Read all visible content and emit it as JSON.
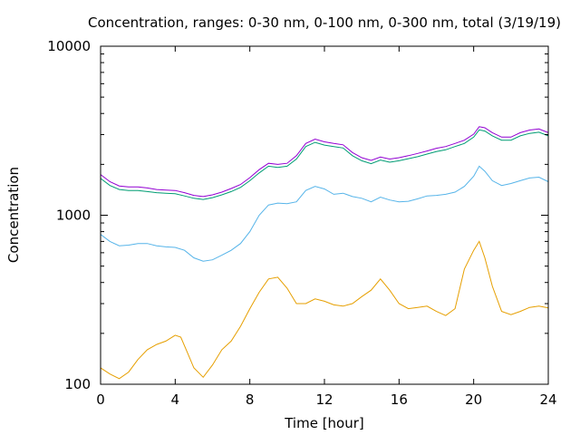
{
  "chart_data": {
    "type": "line",
    "title": "Concentration, ranges: 0-30 nm, 0-100 nm, 0-300 nm, total (3/19/19)",
    "xlabel": "Time [hour]",
    "ylabel": "Concentration",
    "xlim": [
      0,
      24
    ],
    "ylim": [
      100,
      10000
    ],
    "yscale": "log",
    "x_ticks": [
      "0",
      "4",
      "8",
      "12",
      "16",
      "20",
      "24"
    ],
    "y_ticks": [
      "100",
      "1000",
      "10000"
    ],
    "grid": false,
    "legend": "none",
    "series": [
      {
        "color": "#e69f00",
        "x": [
          0,
          0.5,
          1,
          1.5,
          2,
          2.5,
          3,
          3.5,
          4,
          4.3,
          4.7,
          5,
          5.5,
          6,
          6.5,
          7,
          7.5,
          8,
          8.5,
          9,
          9.5,
          10,
          10.5,
          11,
          11.5,
          12,
          12.5,
          13,
          13.5,
          14,
          14.5,
          15,
          15.5,
          16,
          16.5,
          17,
          17.5,
          18,
          18.5,
          19,
          19.5,
          20,
          20.3,
          20.6,
          21,
          21.5,
          22,
          22.5,
          23,
          23.5,
          24
        ],
        "y": [
          125,
          115,
          108,
          118,
          140,
          160,
          172,
          180,
          195,
          190,
          150,
          125,
          110,
          130,
          160,
          180,
          220,
          280,
          350,
          420,
          430,
          370,
          300,
          300,
          320,
          310,
          295,
          290,
          300,
          330,
          360,
          420,
          360,
          300,
          280,
          285,
          290,
          270,
          255,
          280,
          480,
          620,
          700,
          560,
          380,
          270,
          258,
          270,
          285,
          290,
          283
        ]
      },
      {
        "color": "#56b4e9",
        "x": [
          0,
          0.5,
          1,
          1.5,
          2,
          2.5,
          3,
          3.5,
          4,
          4.5,
          5,
          5.5,
          6,
          6.5,
          7,
          7.5,
          8,
          8.5,
          9,
          9.5,
          10,
          10.5,
          11,
          11.5,
          12,
          12.5,
          13,
          13.5,
          14,
          14.5,
          15,
          15.5,
          16,
          16.5,
          17,
          17.5,
          18,
          18.5,
          19,
          19.5,
          20,
          20.3,
          20.6,
          21,
          21.5,
          22,
          22.5,
          23,
          23.5,
          24
        ],
        "y": [
          770,
          700,
          660,
          665,
          680,
          680,
          660,
          650,
          645,
          620,
          560,
          535,
          545,
          580,
          620,
          680,
          800,
          1000,
          1150,
          1180,
          1170,
          1200,
          1400,
          1480,
          1430,
          1330,
          1350,
          1290,
          1260,
          1200,
          1280,
          1230,
          1200,
          1210,
          1250,
          1300,
          1310,
          1330,
          1370,
          1480,
          1700,
          1950,
          1820,
          1600,
          1500,
          1540,
          1600,
          1660,
          1680,
          1580
        ]
      },
      {
        "color": "#009e73",
        "x": [
          0,
          0.5,
          1,
          1.5,
          2,
          2.5,
          3,
          3.5,
          4,
          4.5,
          5,
          5.5,
          6,
          6.5,
          7,
          7.5,
          8,
          8.5,
          9,
          9.5,
          10,
          10.5,
          11,
          11.5,
          12,
          12.5,
          13,
          13.5,
          14,
          14.5,
          15,
          15.5,
          16,
          16.5,
          17,
          17.5,
          18,
          18.5,
          19,
          19.5,
          20,
          20.3,
          20.6,
          21,
          21.5,
          22,
          22.5,
          23,
          23.5,
          24
        ],
        "y": [
          1650,
          1500,
          1420,
          1400,
          1400,
          1380,
          1360,
          1350,
          1340,
          1300,
          1260,
          1240,
          1270,
          1320,
          1380,
          1460,
          1600,
          1780,
          1950,
          1920,
          1950,
          2150,
          2550,
          2700,
          2600,
          2550,
          2500,
          2250,
          2100,
          2020,
          2120,
          2060,
          2100,
          2160,
          2220,
          2300,
          2380,
          2440,
          2550,
          2660,
          2900,
          3200,
          3150,
          2950,
          2780,
          2780,
          2950,
          3050,
          3100,
          2950
        ]
      },
      {
        "color": "#9400d3",
        "x": [
          0,
          0.5,
          1,
          1.5,
          2,
          2.5,
          3,
          3.5,
          4,
          4.5,
          5,
          5.5,
          6,
          6.5,
          7,
          7.5,
          8,
          8.5,
          9,
          9.5,
          10,
          10.5,
          11,
          11.5,
          12,
          12.5,
          13,
          13.5,
          14,
          14.5,
          15,
          15.5,
          16,
          16.5,
          17,
          17.5,
          18,
          18.5,
          19,
          19.5,
          20,
          20.3,
          20.6,
          21,
          21.5,
          22,
          22.5,
          23,
          23.5,
          24
        ],
        "y": [
          1740,
          1580,
          1490,
          1470,
          1470,
          1450,
          1420,
          1410,
          1400,
          1360,
          1310,
          1290,
          1320,
          1370,
          1440,
          1520,
          1670,
          1860,
          2030,
          2000,
          2030,
          2250,
          2660,
          2820,
          2720,
          2660,
          2610,
          2350,
          2190,
          2110,
          2210,
          2150,
          2190,
          2250,
          2320,
          2400,
          2490,
          2550,
          2660,
          2780,
          3020,
          3340,
          3290,
          3080,
          2900,
          2900,
          3080,
          3190,
          3240,
          3080
        ]
      }
    ]
  }
}
